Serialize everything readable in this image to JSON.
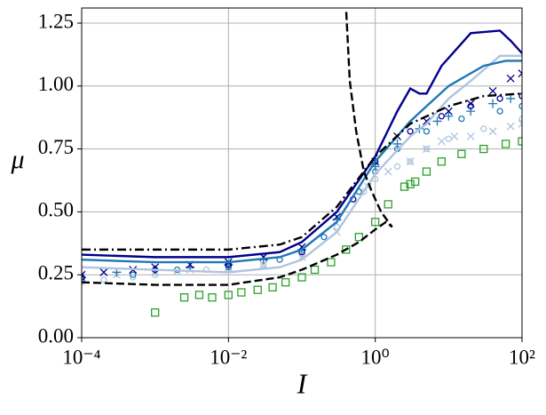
{
  "chart_data": {
    "type": "line",
    "xlabel": "I",
    "ylabel": "μ",
    "xscale": "log",
    "grid": true,
    "xlim": [
      0.0001,
      100
    ],
    "ylim": [
      0,
      1.31
    ],
    "xticks": [
      {
        "value": 0.0001,
        "label": "10⁻⁴"
      },
      {
        "value": 0.01,
        "label": "10⁻²"
      },
      {
        "value": 1,
        "label": "10⁰"
      },
      {
        "value": 100,
        "label": "10²"
      }
    ],
    "yticks": [
      {
        "value": 0,
        "label": "0.00"
      },
      {
        "value": 0.25,
        "label": "0.25"
      },
      {
        "value": 0.5,
        "label": "0.50"
      },
      {
        "value": 0.75,
        "label": "0.75"
      },
      {
        "value": 1,
        "label": "1.00"
      },
      {
        "value": 1.25,
        "label": "1.25"
      }
    ],
    "series": [
      {
        "color": "#b0c4de",
        "marker": "x",
        "x": [
          0.0001,
          0.0003,
          0.001,
          0.003,
          0.01,
          0.03,
          0.1,
          0.3,
          0.8,
          1.5,
          3,
          5,
          8,
          12,
          20,
          40,
          70,
          100
        ],
        "values": [
          0.24,
          0.25,
          0.26,
          0.27,
          0.28,
          0.29,
          0.32,
          0.42,
          0.6,
          0.66,
          0.7,
          0.75,
          0.78,
          0.8,
          0.8,
          0.82,
          0.84,
          0.85
        ]
      },
      {
        "color": "#b0c4de",
        "marker": "o",
        "x": [
          0.0001,
          0.0002,
          0.0005,
          0.001,
          0.002,
          0.005,
          0.01,
          0.03,
          0.1,
          0.3,
          0.7,
          1,
          2,
          3,
          5,
          10,
          30,
          100
        ],
        "values": [
          0.22,
          0.23,
          0.24,
          0.25,
          0.26,
          0.27,
          0.27,
          0.29,
          0.33,
          0.44,
          0.58,
          0.63,
          0.68,
          0.7,
          0.75,
          0.79,
          0.83,
          0.87
        ]
      },
      {
        "color": "#1f77b4",
        "marker": "+",
        "x": [
          0.0001,
          0.0003,
          0.001,
          0.003,
          0.01,
          0.03,
          0.1,
          0.3,
          1,
          2,
          4,
          7,
          10,
          20,
          40,
          70,
          100
        ],
        "values": [
          0.24,
          0.26,
          0.27,
          0.28,
          0.29,
          0.31,
          0.35,
          0.47,
          0.68,
          0.77,
          0.83,
          0.86,
          0.88,
          0.9,
          0.93,
          0.95,
          0.97
        ]
      },
      {
        "color": "#1f77b4",
        "marker": "o",
        "x": [
          0.0001,
          0.0005,
          0.002,
          0.01,
          0.05,
          0.2,
          0.6,
          1,
          2,
          5,
          15,
          50,
          100
        ],
        "values": [
          0.23,
          0.25,
          0.27,
          0.28,
          0.31,
          0.4,
          0.58,
          0.66,
          0.75,
          0.82,
          0.87,
          0.9,
          0.92
        ]
      },
      {
        "color": "#00008b",
        "marker": "x",
        "x": [
          0.0001,
          0.0002,
          0.0005,
          0.001,
          0.003,
          0.01,
          0.03,
          0.1,
          0.3,
          1,
          2,
          5,
          10,
          20,
          40,
          70,
          100
        ],
        "values": [
          0.25,
          0.26,
          0.27,
          0.28,
          0.29,
          0.3,
          0.32,
          0.36,
          0.48,
          0.7,
          0.8,
          0.86,
          0.9,
          0.93,
          0.98,
          1.03,
          1.05
        ]
      },
      {
        "color": "#00008b",
        "marker": "o",
        "x": [
          0.0001,
          0.001,
          0.01,
          0.1,
          0.5,
          1,
          3,
          8,
          20,
          50,
          100
        ],
        "values": [
          0.24,
          0.27,
          0.29,
          0.34,
          0.55,
          0.7,
          0.82,
          0.88,
          0.92,
          0.95,
          0.96
        ]
      },
      {
        "color": "#2ca02c",
        "marker": "s",
        "x": [
          0.001,
          0.0025,
          0.004,
          0.006,
          0.01,
          0.015,
          0.025,
          0.04,
          0.06,
          0.1,
          0.15,
          0.25,
          0.4,
          0.6,
          1,
          1.5,
          2.5,
          3,
          3.5,
          5,
          8,
          15,
          30,
          60,
          100
        ],
        "values": [
          0.1,
          0.16,
          0.17,
          0.16,
          0.17,
          0.18,
          0.19,
          0.2,
          0.22,
          0.24,
          0.27,
          0.3,
          0.35,
          0.4,
          0.46,
          0.53,
          0.6,
          0.61,
          0.62,
          0.66,
          0.7,
          0.73,
          0.75,
          0.77,
          0.78
        ]
      },
      {
        "color": "#b0c4de",
        "linestyle": "solid",
        "x": [
          0.0001,
          0.001,
          0.01,
          0.05,
          0.1,
          0.3,
          1,
          3,
          5,
          10,
          20,
          50,
          100
        ],
        "values": [
          0.28,
          0.27,
          0.26,
          0.28,
          0.31,
          0.42,
          0.65,
          0.8,
          0.85,
          0.95,
          1.02,
          1.12,
          1.12
        ]
      },
      {
        "color": "#1f77b4",
        "linestyle": "solid",
        "x": [
          0.0001,
          0.001,
          0.01,
          0.05,
          0.1,
          0.3,
          1,
          3,
          5,
          10,
          30,
          60,
          100
        ],
        "values": [
          0.31,
          0.3,
          0.3,
          0.32,
          0.35,
          0.46,
          0.7,
          0.86,
          0.92,
          1.0,
          1.08,
          1.1,
          1.1
        ]
      },
      {
        "color": "#00008b",
        "linestyle": "solid",
        "x": [
          0.0001,
          0.001,
          0.01,
          0.05,
          0.1,
          0.3,
          1,
          2,
          3,
          4,
          5,
          8,
          20,
          50,
          70,
          100
        ],
        "values": [
          0.33,
          0.32,
          0.32,
          0.34,
          0.38,
          0.5,
          0.72,
          0.9,
          0.99,
          0.97,
          0.97,
          1.08,
          1.21,
          1.22,
          1.18,
          1.13
        ]
      },
      {
        "color": "#000000",
        "linestyle": "dashdot",
        "x": [
          0.0001,
          0.001,
          0.01,
          0.05,
          0.1,
          0.3,
          1,
          3,
          10,
          30,
          100
        ],
        "values": [
          0.35,
          0.35,
          0.35,
          0.37,
          0.4,
          0.52,
          0.72,
          0.85,
          0.92,
          0.96,
          0.97
        ]
      },
      {
        "color": "#000000",
        "linestyle": "dashed",
        "x": [
          0.0001,
          0.001,
          0.01,
          0.05,
          0.1,
          0.3,
          0.6,
          1,
          1.4,
          1.7,
          1.6,
          1.2,
          0.9,
          0.7,
          0.55,
          0.45,
          0.4
        ],
        "values": [
          0.22,
          0.21,
          0.21,
          0.24,
          0.27,
          0.33,
          0.38,
          0.43,
          0.46,
          0.44,
          0.45,
          0.5,
          0.58,
          0.66,
          0.82,
          1.02,
          1.31
        ]
      }
    ]
  }
}
